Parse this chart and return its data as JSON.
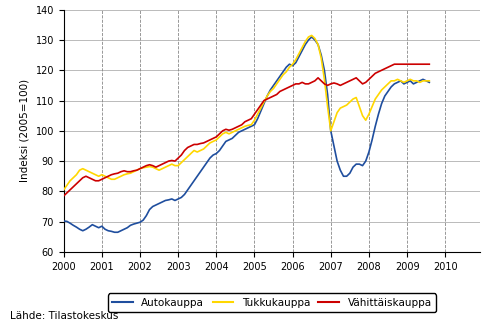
{
  "ylabel": "Indeksi (2005=100)",
  "source_text": "Lähde: Tilastokeskus",
  "ylim": [
    60,
    140
  ],
  "yticks": [
    60,
    70,
    80,
    90,
    100,
    110,
    120,
    130,
    140
  ],
  "xlim_start": 2000.0,
  "xlim_end": 2010.917,
  "xtick_years": [
    2000,
    2001,
    2002,
    2003,
    2004,
    2005,
    2006,
    2007,
    2008,
    2009,
    2010
  ],
  "colors": {
    "autokauppa": "#1f4e9e",
    "tukkukauppa": "#ffd700",
    "vahittaiskauppa": "#cc0000"
  },
  "legend_labels": [
    "Autokauppa",
    "Tukkukauppa",
    "Vähittäiskauppa"
  ],
  "autokauppa": [
    70.2,
    70.1,
    69.5,
    68.8,
    68.2,
    67.5,
    67.0,
    67.5,
    68.2,
    69.0,
    68.5,
    68.0,
    68.5,
    67.5,
    67.0,
    66.8,
    66.5,
    66.5,
    67.0,
    67.5,
    68.0,
    68.8,
    69.2,
    69.5,
    69.8,
    70.5,
    72.0,
    74.0,
    75.0,
    75.5,
    76.0,
    76.5,
    77.0,
    77.2,
    77.5,
    77.0,
    77.5,
    78.0,
    79.0,
    80.5,
    82.0,
    83.5,
    85.0,
    86.5,
    88.0,
    89.5,
    91.0,
    92.0,
    92.5,
    93.5,
    95.0,
    96.5,
    97.0,
    97.5,
    98.5,
    99.5,
    100.0,
    100.5,
    101.0,
    101.5,
    102.0,
    104.0,
    106.5,
    109.0,
    111.5,
    113.5,
    115.0,
    116.5,
    118.0,
    119.5,
    121.0,
    122.0,
    121.5,
    122.5,
    124.5,
    126.5,
    128.5,
    130.0,
    131.0,
    130.0,
    128.5,
    125.0,
    120.0,
    112.0,
    100.0,
    95.0,
    90.0,
    87.0,
    85.0,
    85.0,
    86.0,
    88.0,
    89.0,
    89.0,
    88.5,
    90.0,
    93.0,
    97.0,
    101.5,
    105.5,
    109.0,
    111.5,
    113.0,
    114.5,
    115.5,
    116.0,
    116.5,
    115.5,
    116.0,
    116.5,
    115.5,
    116.0,
    116.5,
    117.0,
    116.5,
    116.0
  ],
  "tukkukauppa": [
    80.5,
    82.0,
    83.5,
    84.5,
    85.5,
    87.0,
    87.5,
    87.0,
    86.5,
    86.0,
    85.5,
    85.0,
    85.5,
    85.0,
    84.5,
    84.0,
    84.0,
    84.5,
    85.0,
    85.5,
    85.8,
    86.0,
    86.5,
    87.0,
    87.5,
    87.8,
    88.0,
    88.2,
    88.0,
    87.5,
    87.0,
    87.5,
    88.0,
    88.5,
    89.0,
    88.5,
    88.5,
    89.5,
    90.5,
    91.5,
    92.5,
    93.5,
    93.0,
    93.5,
    94.0,
    95.0,
    96.0,
    96.5,
    97.0,
    98.0,
    99.0,
    99.5,
    99.0,
    99.5,
    100.0,
    100.5,
    101.0,
    101.5,
    101.8,
    102.0,
    103.5,
    105.5,
    107.5,
    109.5,
    111.5,
    113.0,
    114.0,
    115.5,
    117.0,
    118.5,
    119.5,
    121.0,
    122.0,
    123.5,
    125.5,
    127.5,
    129.5,
    131.0,
    131.5,
    130.5,
    128.5,
    124.0,
    117.0,
    108.0,
    100.0,
    103.0,
    106.0,
    107.5,
    108.0,
    108.5,
    109.5,
    110.5,
    111.0,
    108.0,
    105.0,
    103.5,
    105.5,
    108.0,
    110.5,
    112.0,
    113.5,
    114.5,
    115.5,
    116.5,
    116.5,
    117.0,
    116.5,
    116.0,
    116.5,
    117.0,
    116.5,
    116.5,
    116.0,
    116.5,
    116.5,
    116.5
  ],
  "vahittaiskauppa": [
    78.5,
    79.5,
    80.5,
    81.5,
    82.5,
    83.5,
    84.5,
    85.0,
    84.5,
    84.0,
    83.5,
    83.5,
    84.0,
    84.5,
    85.0,
    85.5,
    85.8,
    86.0,
    86.5,
    86.8,
    86.5,
    86.5,
    86.8,
    87.0,
    87.5,
    88.0,
    88.5,
    88.8,
    88.5,
    88.0,
    88.5,
    89.0,
    89.5,
    90.0,
    90.2,
    90.0,
    91.0,
    92.0,
    93.5,
    94.5,
    95.0,
    95.5,
    95.5,
    95.8,
    96.0,
    96.5,
    97.0,
    97.5,
    98.0,
    99.0,
    100.0,
    100.5,
    100.2,
    100.5,
    101.0,
    101.5,
    102.0,
    103.0,
    103.5,
    104.0,
    105.5,
    107.0,
    108.5,
    110.0,
    110.5,
    111.0,
    111.5,
    112.0,
    113.0,
    113.5,
    114.0,
    114.5,
    115.0,
    115.5,
    115.5,
    116.0,
    115.5,
    115.5,
    116.0,
    116.5,
    117.5,
    116.5,
    115.5,
    115.0,
    115.5,
    115.8,
    115.5,
    115.0,
    115.5,
    116.0,
    116.5,
    117.0,
    117.5,
    116.5,
    115.5,
    116.0,
    117.0,
    118.0,
    119.0,
    119.5,
    120.0,
    120.5,
    121.0,
    121.5,
    122.0,
    122.0,
    122.0,
    122.0,
    122.0,
    122.0,
    122.0,
    122.0,
    122.0,
    122.0,
    122.0,
    122.0
  ]
}
